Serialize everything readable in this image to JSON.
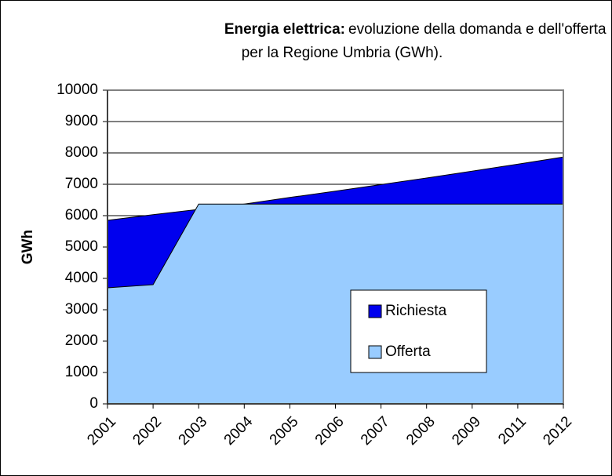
{
  "chart_data": {
    "type": "area",
    "title": [
      "Energia elettrica:",
      "evoluzione della domanda e dell'offerta",
      "per la Regione Umbria (GWh)."
    ],
    "y_label": "GWh",
    "categories": [
      "2001",
      "2002",
      "2003",
      "2004",
      "2005",
      "2006",
      "2007",
      "2008",
      "2009",
      "2011",
      "2012"
    ],
    "series": [
      {
        "name": "Richiesta",
        "color": "#0000ee",
        "values": [
          5850,
          6030,
          6200,
          6370,
          6580,
          6780,
          6990,
          7200,
          7420,
          7640,
          7870
        ]
      },
      {
        "name": "Offerta",
        "color": "#99ccff",
        "values": [
          3700,
          3800,
          6370,
          6370,
          6370,
          6370,
          6370,
          6370,
          6370,
          6370,
          6370
        ]
      }
    ],
    "ylim": [
      0,
      10000
    ],
    "yticks": [
      0,
      1000,
      2000,
      3000,
      4000,
      5000,
      6000,
      7000,
      8000,
      9000,
      10000
    ],
    "grid": true
  }
}
